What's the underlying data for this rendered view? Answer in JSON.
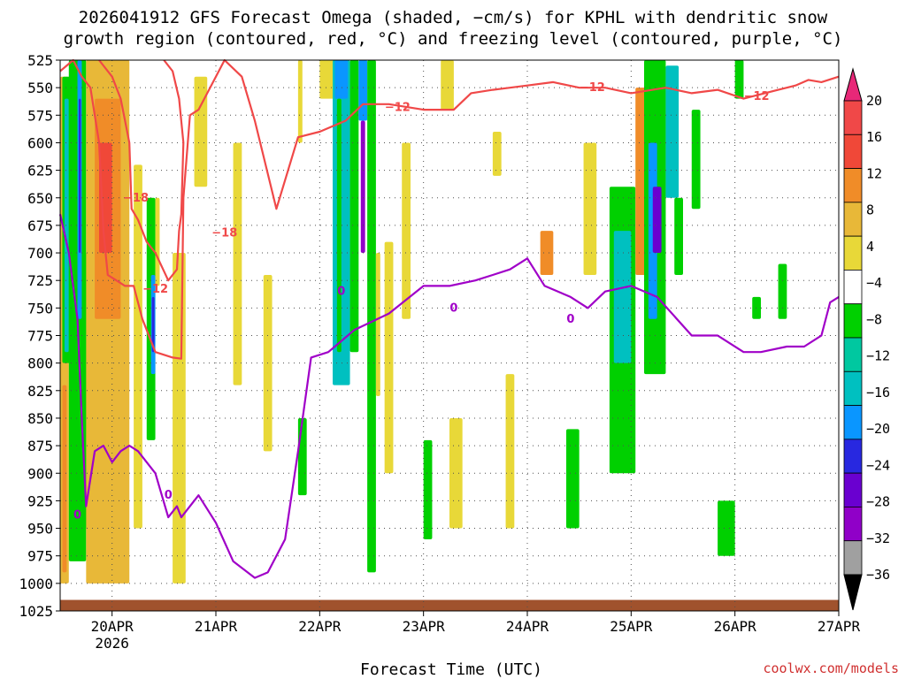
{
  "chart_data": {
    "type": "time-height",
    "title_lines": [
      "2026041912 GFS Forecast Omega (shaded, −cm/s) for KPHL with dendritic snow",
      "growth region (contoured, red, °C) and freezing level (contoured, purple, °C)"
    ],
    "xlabel": "Forecast Time (UTC)",
    "credit": "coolwx.com/models",
    "x_range_hours": [
      0,
      180
    ],
    "x_ticks": [
      {
        "hour": 12,
        "label": "20APR",
        "sublabel": "2026"
      },
      {
        "hour": 36,
        "label": "21APR"
      },
      {
        "hour": 60,
        "label": "22APR"
      },
      {
        "hour": 84,
        "label": "23APR"
      },
      {
        "hour": 108,
        "label": "24APR"
      },
      {
        "hour": 132,
        "label": "25APR"
      },
      {
        "hour": 156,
        "label": "26APR"
      },
      {
        "hour": 180,
        "label": "27APR"
      }
    ],
    "y_range_hpa": [
      1025,
      525
    ],
    "y_ticks": [
      525,
      550,
      575,
      600,
      625,
      650,
      675,
      700,
      725,
      750,
      775,
      800,
      825,
      850,
      875,
      900,
      925,
      950,
      975,
      1000,
      1025
    ],
    "colorbar": {
      "levels": [
        -36,
        -32,
        -28,
        -24,
        -20,
        -16,
        -12,
        -8,
        -4,
        4,
        8,
        12,
        16,
        20
      ],
      "labels": [
        "20",
        "16",
        "12",
        "8",
        "4",
        "−4",
        "−8",
        "−12",
        "−16",
        "−20",
        "−24",
        "−28",
        "−32",
        "−36"
      ],
      "colors": [
        "#000000",
        "#a0a0a0",
        "#9000c8",
        "#6a00d0",
        "#2828e0",
        "#0a96ff",
        "#00c0c0",
        "#00c8a0",
        "#00d000",
        "#ffffff",
        "#e8d838",
        "#e8b838",
        "#f08c28",
        "#f04838",
        "#f04848",
        "#e82878"
      ]
    },
    "omega_regions": [
      {
        "t0": 0,
        "t1": 2,
        "p0": 540,
        "p1": 1000,
        "level": 8
      },
      {
        "t0": 0.5,
        "t1": 1.5,
        "p0": 820,
        "p1": 990,
        "level": 12
      },
      {
        "t0": 0.5,
        "t1": 2.5,
        "p0": 540,
        "p1": 800,
        "level": -8
      },
      {
        "t0": 1,
        "t1": 2,
        "p0": 560,
        "p1": 790,
        "level": -12
      },
      {
        "t0": 2,
        "t1": 6,
        "p0": 525,
        "p1": 980,
        "level": -8
      },
      {
        "t0": 4,
        "t1": 5,
        "p0": 525,
        "p1": 760,
        "level": -16
      },
      {
        "t0": 4.3,
        "t1": 4.8,
        "p0": 560,
        "p1": 700,
        "level": -20
      },
      {
        "t0": 5,
        "t1": 7,
        "p0": 700,
        "p1": 950,
        "level": -8
      },
      {
        "t0": 6,
        "t1": 16,
        "p0": 525,
        "p1": 1000,
        "level": 8
      },
      {
        "t0": 8,
        "t1": 14,
        "p0": 560,
        "p1": 760,
        "level": 12
      },
      {
        "t0": 9,
        "t1": 12,
        "p0": 600,
        "p1": 700,
        "level": 16
      },
      {
        "t0": 17,
        "t1": 19,
        "p0": 620,
        "p1": 950,
        "level": 4
      },
      {
        "t0": 20,
        "t1": 22,
        "p0": 650,
        "p1": 870,
        "level": -8
      },
      {
        "t0": 21,
        "t1": 22,
        "p0": 720,
        "p1": 810,
        "level": -16
      },
      {
        "t0": 21.2,
        "t1": 21.8,
        "p0": 740,
        "p1": 790,
        "level": -20
      },
      {
        "t0": 22,
        "t1": 23,
        "p0": 650,
        "p1": 730,
        "level": 4
      },
      {
        "t0": 26,
        "t1": 29,
        "p0": 700,
        "p1": 1000,
        "level": 4
      },
      {
        "t0": 31,
        "t1": 34,
        "p0": 540,
        "p1": 640,
        "level": 4
      },
      {
        "t0": 40,
        "t1": 42,
        "p0": 600,
        "p1": 820,
        "level": 4
      },
      {
        "t0": 47,
        "t1": 49,
        "p0": 720,
        "p1": 880,
        "level": 4
      },
      {
        "t0": 55,
        "t1": 56,
        "p0": 525,
        "p1": 600,
        "level": 4
      },
      {
        "t0": 55,
        "t1": 57,
        "p0": 850,
        "p1": 920,
        "level": -8
      },
      {
        "t0": 60,
        "t1": 64,
        "p0": 525,
        "p1": 560,
        "level": 4
      },
      {
        "t0": 63,
        "t1": 67,
        "p0": 525,
        "p1": 820,
        "level": -12
      },
      {
        "t0": 63.5,
        "t1": 66.5,
        "p0": 525,
        "p1": 560,
        "level": -16
      },
      {
        "t0": 64,
        "t1": 65,
        "p0": 560,
        "p1": 790,
        "level": -8
      },
      {
        "t0": 67,
        "t1": 69,
        "p0": 525,
        "p1": 790,
        "level": -8
      },
      {
        "t0": 69,
        "t1": 71,
        "p0": 525,
        "p1": 580,
        "level": -16
      },
      {
        "t0": 69.5,
        "t1": 70.5,
        "p0": 580,
        "p1": 700,
        "level": -28
      },
      {
        "t0": 71,
        "t1": 73,
        "p0": 525,
        "p1": 990,
        "level": -8
      },
      {
        "t0": 73,
        "t1": 74,
        "p0": 700,
        "p1": 830,
        "level": 4
      },
      {
        "t0": 75,
        "t1": 77,
        "p0": 690,
        "p1": 900,
        "level": 4
      },
      {
        "t0": 79,
        "t1": 81,
        "p0": 600,
        "p1": 760,
        "level": 4
      },
      {
        "t0": 84,
        "t1": 86,
        "p0": 870,
        "p1": 960,
        "level": -8
      },
      {
        "t0": 88,
        "t1": 91,
        "p0": 525,
        "p1": 570,
        "level": 4
      },
      {
        "t0": 90,
        "t1": 93,
        "p0": 850,
        "p1": 950,
        "level": 4
      },
      {
        "t0": 100,
        "t1": 102,
        "p0": 590,
        "p1": 630,
        "level": 4
      },
      {
        "t0": 103,
        "t1": 105,
        "p0": 810,
        "p1": 950,
        "level": 4
      },
      {
        "t0": 111,
        "t1": 114,
        "p0": 680,
        "p1": 720,
        "level": 12
      },
      {
        "t0": 117,
        "t1": 120,
        "p0": 860,
        "p1": 950,
        "level": -8
      },
      {
        "t0": 121,
        "t1": 124,
        "p0": 600,
        "p1": 720,
        "level": 4
      },
      {
        "t0": 127,
        "t1": 133,
        "p0": 640,
        "p1": 900,
        "level": -8
      },
      {
        "t0": 128,
        "t1": 132,
        "p0": 680,
        "p1": 800,
        "level": -12
      },
      {
        "t0": 133,
        "t1": 137,
        "p0": 550,
        "p1": 720,
        "level": 12
      },
      {
        "t0": 135,
        "t1": 140,
        "p0": 525,
        "p1": 810,
        "level": -8
      },
      {
        "t0": 136,
        "t1": 138,
        "p0": 600,
        "p1": 760,
        "level": -16
      },
      {
        "t0": 137,
        "t1": 139,
        "p0": 640,
        "p1": 700,
        "level": -24
      },
      {
        "t0": 140,
        "t1": 143,
        "p0": 530,
        "p1": 650,
        "level": -12
      },
      {
        "t0": 142,
        "t1": 144,
        "p0": 650,
        "p1": 720,
        "level": -8
      },
      {
        "t0": 146,
        "t1": 148,
        "p0": 570,
        "p1": 660,
        "level": -8
      },
      {
        "t0": 152,
        "t1": 156,
        "p0": 925,
        "p1": 975,
        "level": -8
      },
      {
        "t0": 156,
        "t1": 158,
        "p0": 525,
        "p1": 560,
        "level": -8
      },
      {
        "t0": 160,
        "t1": 162,
        "p0": 740,
        "p1": 760,
        "level": -8
      },
      {
        "t0": 166,
        "t1": 168,
        "p0": 710,
        "p1": 760,
        "level": -8
      }
    ],
    "contours": [
      {
        "name": "dgz-minus12",
        "color": "#f04848",
        "value": "−12",
        "points": [
          [
            0,
            535
          ],
          [
            3,
            525
          ],
          [
            5,
            540
          ],
          [
            7,
            550
          ],
          [
            9,
            600
          ],
          [
            10,
            680
          ],
          [
            11,
            720
          ],
          [
            13,
            725
          ],
          [
            15,
            730
          ],
          [
            17,
            730
          ],
          [
            19,
            760
          ],
          [
            22,
            790
          ],
          [
            26,
            795
          ],
          [
            28,
            796
          ],
          [
            28.5,
            650
          ],
          [
            30,
            575
          ],
          [
            32,
            570
          ],
          [
            36,
            540
          ],
          [
            38,
            525
          ],
          [
            42,
            540
          ],
          [
            45,
            580
          ],
          [
            50,
            660
          ],
          [
            55,
            595
          ],
          [
            60,
            590
          ],
          [
            66,
            580
          ],
          [
            70,
            565
          ],
          [
            76,
            565
          ],
          [
            84,
            570
          ],
          [
            91,
            570
          ],
          [
            95,
            555
          ],
          [
            100,
            552
          ],
          [
            104,
            550
          ],
          [
            108,
            548
          ],
          [
            114,
            545
          ],
          [
            120,
            550
          ],
          [
            126,
            550
          ],
          [
            132,
            555
          ],
          [
            140,
            550
          ],
          [
            146,
            555
          ],
          [
            152,
            552
          ],
          [
            158,
            560
          ],
          [
            166,
            552
          ],
          [
            170,
            548
          ],
          [
            173,
            543
          ],
          [
            176,
            545
          ],
          [
            180,
            540
          ]
        ],
        "labels": [
          {
            "t": 22,
            "p": 733
          },
          {
            "t": 78,
            "p": 568
          },
          {
            "t": 123,
            "p": 550
          },
          {
            "t": 161,
            "p": 558
          }
        ]
      },
      {
        "name": "dgz-minus18",
        "color": "#f04848",
        "value": "−18",
        "points": [
          [
            9,
            525
          ],
          [
            12,
            540
          ],
          [
            14,
            560
          ],
          [
            16,
            600
          ],
          [
            16.5,
            660
          ],
          [
            18,
            670
          ],
          [
            20,
            690
          ],
          [
            22,
            700
          ],
          [
            25,
            725
          ],
          [
            27,
            715
          ],
          [
            27.5,
            680
          ],
          [
            28,
            665
          ],
          [
            28.5,
            600
          ],
          [
            27.5,
            560
          ],
          [
            26,
            535
          ],
          [
            24,
            525
          ]
        ],
        "labels": [
          {
            "t": 17.5,
            "p": 650
          },
          {
            "t": 38,
            "p": 682
          }
        ]
      },
      {
        "name": "freezing-level-0C",
        "color": "#a000c8",
        "value": "0",
        "points": [
          [
            0,
            665
          ],
          [
            2,
            700
          ],
          [
            4,
            760
          ],
          [
            5,
            850
          ],
          [
            6,
            930
          ],
          [
            8,
            880
          ],
          [
            10,
            875
          ],
          [
            12,
            890
          ],
          [
            14,
            880
          ],
          [
            16,
            875
          ],
          [
            18,
            880
          ],
          [
            22,
            900
          ],
          [
            25,
            940
          ],
          [
            27,
            930
          ],
          [
            28,
            940
          ],
          [
            30,
            930
          ],
          [
            32,
            920
          ],
          [
            36,
            945
          ],
          [
            40,
            980
          ],
          [
            45,
            995
          ],
          [
            48,
            990
          ],
          [
            52,
            960
          ],
          [
            55,
            880
          ],
          [
            58,
            795
          ],
          [
            62,
            790
          ],
          [
            68,
            770
          ],
          [
            76,
            755
          ],
          [
            84,
            730
          ],
          [
            90,
            730
          ],
          [
            96,
            725
          ],
          [
            100,
            720
          ],
          [
            104,
            715
          ],
          [
            108,
            705
          ],
          [
            112,
            730
          ],
          [
            118,
            740
          ],
          [
            122,
            750
          ],
          [
            126,
            735
          ],
          [
            132,
            730
          ],
          [
            138,
            740
          ],
          [
            146,
            775
          ],
          [
            152,
            775
          ],
          [
            158,
            790
          ],
          [
            162,
            790
          ],
          [
            168,
            785
          ],
          [
            172,
            785
          ],
          [
            176,
            775
          ],
          [
            178,
            745
          ],
          [
            180,
            740
          ]
        ],
        "labels": [
          {
            "t": 4,
            "p": 938
          },
          {
            "t": 25,
            "p": 920
          },
          {
            "t": 65,
            "p": 735
          },
          {
            "t": 91,
            "p": 750
          },
          {
            "t": 118,
            "p": 760
          }
        ]
      }
    ],
    "terrain_level_hpa": 1015
  }
}
